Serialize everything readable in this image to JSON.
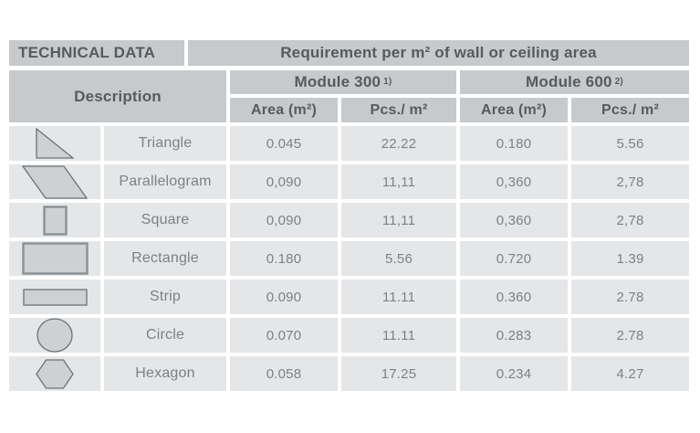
{
  "table": {
    "top": {
      "title": "TECHNICAL DATA",
      "requirement_header": "Requirement per m² of wall or ceiling area"
    },
    "columns": {
      "description": "Description",
      "module300_label": "Module 300",
      "module300_sup": "1)",
      "module600_label": "Module 600",
      "module600_sup": "2)",
      "area_header": "Area (m²)",
      "pcs_header": "Pcs./ m²"
    },
    "rows": [
      {
        "shape": "triangle",
        "name": "Triangle",
        "values": [
          "0.045",
          "22.22",
          "0.180",
          "5.56"
        ]
      },
      {
        "shape": "parallelogram",
        "name": "Parallelogram",
        "values": [
          "0,090",
          "11,11",
          "0,360",
          "2,78"
        ]
      },
      {
        "shape": "square",
        "name": "Square",
        "values": [
          "0,090",
          "11,11",
          "0,360",
          "2,78"
        ]
      },
      {
        "shape": "rectangle",
        "name": "Rectangle",
        "values": [
          "0.180",
          "5.56",
          "0.720",
          "1.39"
        ]
      },
      {
        "shape": "strip",
        "name": "Strip",
        "values": [
          "0.090",
          "11.11",
          "0.360",
          "2.78"
        ]
      },
      {
        "shape": "circle",
        "name": "Circle",
        "values": [
          "0.070",
          "11.11",
          "0.283",
          "2.78"
        ]
      },
      {
        "shape": "hexagon",
        "name": "Hexagon",
        "values": [
          "0.058",
          "17.25",
          "0.234",
          "4.27"
        ]
      }
    ]
  },
  "colors": {
    "header_bg": "#c6cacc",
    "body_bg": "#e4e6e8",
    "header_text": "#565b5e",
    "body_text": "#7d8285",
    "shape_fill": "#cdd1d3",
    "shape_stroke": "#6d7275"
  }
}
